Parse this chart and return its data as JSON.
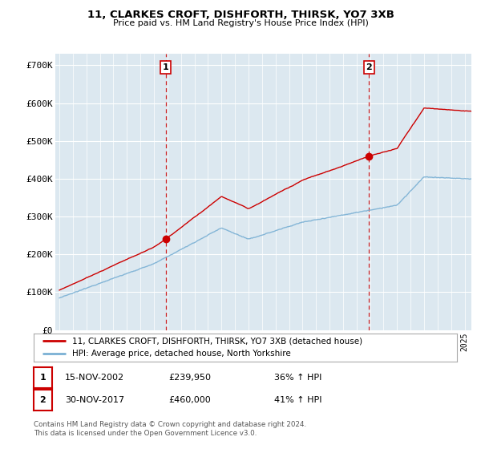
{
  "title": "11, CLARKES CROFT, DISHFORTH, THIRSK, YO7 3XB",
  "subtitle": "Price paid vs. HM Land Registry's House Price Index (HPI)",
  "ylabel_ticks": [
    "£0",
    "£100K",
    "£200K",
    "£300K",
    "£400K",
    "£500K",
    "£600K",
    "£700K"
  ],
  "ytick_values": [
    0,
    100000,
    200000,
    300000,
    400000,
    500000,
    600000,
    700000
  ],
  "ylim": [
    0,
    730000
  ],
  "xlim_start": 1994.7,
  "xlim_end": 2025.5,
  "sale1_date": 2002.88,
  "sale1_price": 239950,
  "sale1_label": "1",
  "sale2_date": 2017.92,
  "sale2_price": 460000,
  "sale2_label": "2",
  "legend_line1": "11, CLARKES CROFT, DISHFORTH, THIRSK, YO7 3XB (detached house)",
  "legend_line2": "HPI: Average price, detached house, North Yorkshire",
  "table_row1": [
    "1",
    "15-NOV-2002",
    "£239,950",
    "36% ↑ HPI"
  ],
  "table_row2": [
    "2",
    "30-NOV-2017",
    "£460,000",
    "41% ↑ HPI"
  ],
  "footer": "Contains HM Land Registry data © Crown copyright and database right 2024.\nThis data is licensed under the Open Government Licence v3.0.",
  "bg_color": "#ffffff",
  "plot_bg_color": "#dce8f0",
  "grid_color": "#ffffff",
  "red_line_color": "#cc0000",
  "blue_line_color": "#7ab0d4",
  "vline_color": "#cc0000"
}
